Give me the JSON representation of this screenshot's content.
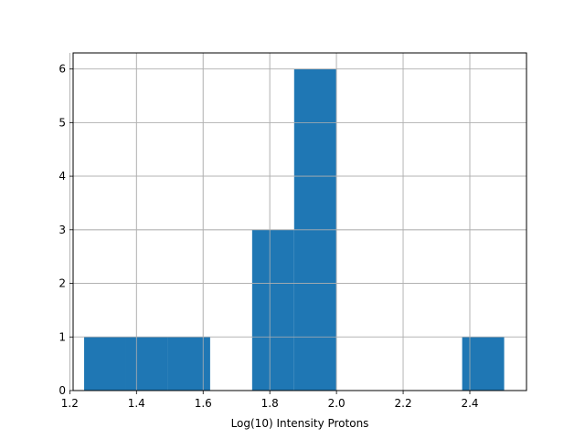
{
  "chart_data": {
    "type": "bar",
    "subtype": "histogram",
    "title": "",
    "xlabel": "Log(10) Intensity Protons",
    "ylabel": "",
    "xlim": [
      1.21,
      2.57
    ],
    "ylim": [
      0,
      6.3
    ],
    "grid": true,
    "bar_color": "#1f77b4",
    "bins": [
      {
        "x0": 1.243,
        "x1": 1.369,
        "count": 1
      },
      {
        "x0": 1.369,
        "x1": 1.495,
        "count": 1
      },
      {
        "x0": 1.495,
        "x1": 1.621,
        "count": 1
      },
      {
        "x0": 1.621,
        "x1": 1.747,
        "count": 0
      },
      {
        "x0": 1.747,
        "x1": 1.873,
        "count": 3
      },
      {
        "x0": 1.873,
        "x1": 1.999,
        "count": 6
      },
      {
        "x0": 1.999,
        "x1": 2.125,
        "count": 0
      },
      {
        "x0": 2.125,
        "x1": 2.251,
        "count": 0
      },
      {
        "x0": 2.251,
        "x1": 2.377,
        "count": 0
      },
      {
        "x0": 2.377,
        "x1": 2.503,
        "count": 1
      }
    ],
    "xticks": [
      {
        "value": 1.2,
        "label": "1.2"
      },
      {
        "value": 1.4,
        "label": "1.4"
      },
      {
        "value": 1.6,
        "label": "1.6"
      },
      {
        "value": 1.8,
        "label": "1.8"
      },
      {
        "value": 2.0,
        "label": "2.0"
      },
      {
        "value": 2.2,
        "label": "2.2"
      },
      {
        "value": 2.4,
        "label": "2.4"
      }
    ],
    "yticks": [
      {
        "value": 0,
        "label": "0"
      },
      {
        "value": 1,
        "label": "1"
      },
      {
        "value": 2,
        "label": "2"
      },
      {
        "value": 3,
        "label": "3"
      },
      {
        "value": 4,
        "label": "4"
      },
      {
        "value": 5,
        "label": "5"
      },
      {
        "value": 6,
        "label": "6"
      }
    ]
  }
}
